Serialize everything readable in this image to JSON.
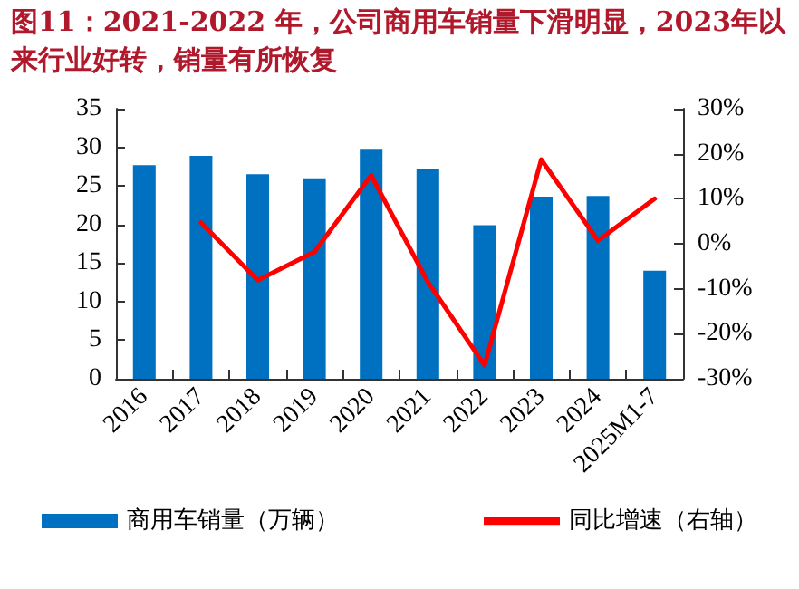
{
  "chart_data": {
    "type": "bar",
    "title": "图11：2021-2022 年，公司商用车销量下滑明显，2023年以来行业好转，销量有所恢复",
    "categories": [
      "2016",
      "2017",
      "2018",
      "2019",
      "2020",
      "2021",
      "2022",
      "2023",
      "2024",
      "2025M1-7"
    ],
    "series": [
      {
        "name": "商用车销量（万辆）",
        "color": "#0070c0",
        "values": [
          27.7,
          28.9,
          26.5,
          26.0,
          29.8,
          27.2,
          19.9,
          23.6,
          23.7,
          14.0
        ]
      },
      {
        "name": "同比增速（右轴）",
        "type": "line",
        "axis": "y2",
        "color": "#ff0000",
        "values": [
          null,
          4.7,
          -8.1,
          -1.8,
          15.2,
          -8.5,
          -27,
          18.7,
          0.7,
          10.0
        ]
      }
    ],
    "ylim": [
      0,
      35
    ],
    "yticks": [
      0,
      5,
      10,
      15,
      20,
      25,
      30,
      35
    ],
    "y2lim": [
      -30,
      30
    ],
    "y2ticks": [
      {
        "value": -30,
        "label": "-30%"
      },
      {
        "value": -20,
        "label": "-20%"
      },
      {
        "value": -10,
        "label": "-10%"
      },
      {
        "value": 0,
        "label": "0%"
      },
      {
        "value": 10,
        "label": "10%"
      },
      {
        "value": 20,
        "label": "20%"
      },
      {
        "value": 30,
        "label": "30%"
      }
    ],
    "grid": false,
    "legend": "bottom",
    "marker": "none",
    "line_style": "solid"
  }
}
